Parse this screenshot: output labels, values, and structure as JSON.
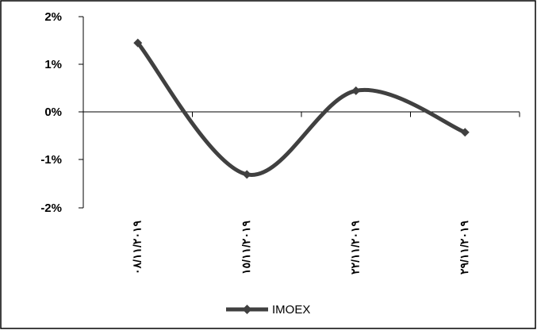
{
  "chart_data": {
    "type": "line",
    "categories": [
      "٠٨/١١/٢٠١٩",
      "١٥/١١/٢٠١٩",
      "٢٢/١١/٢٠١٩",
      "٢٩/١١/٢٠١٩"
    ],
    "series": [
      {
        "name": "IMOEX",
        "values": [
          1.45,
          -1.3,
          0.45,
          -0.42
        ],
        "color": "#404040",
        "marker": "diamond"
      }
    ],
    "y_ticks": [
      "2%",
      "1%",
      "0%",
      "-1%",
      "-2%"
    ],
    "ylim": [
      -2,
      2
    ],
    "y_unit": "%",
    "grid": false,
    "legend_position": "bottom",
    "smooth": true
  }
}
